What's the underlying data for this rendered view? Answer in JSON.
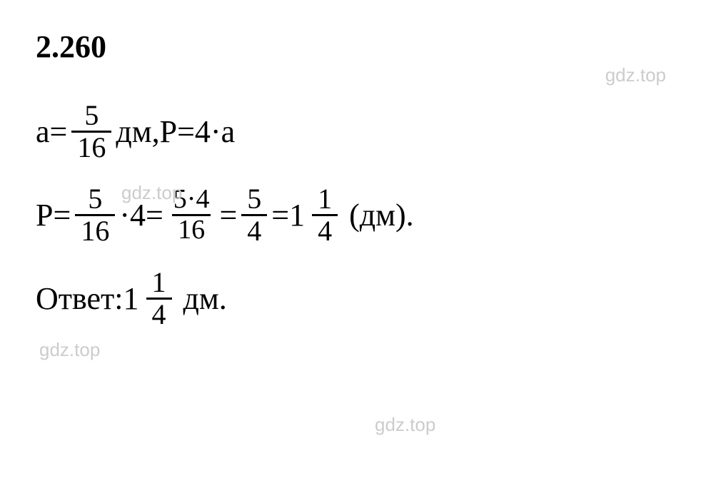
{
  "heading": "2.260",
  "watermark_text": "gdz.top",
  "colors": {
    "text": "#000000",
    "background": "#ffffff",
    "watermark": "#cccccc"
  },
  "typography": {
    "heading_fontsize": 44,
    "math_fontsize": 44,
    "frac_fontsize": 40,
    "watermark_fontsize": 26
  },
  "line1": {
    "var1": "a",
    "eq1": " = ",
    "frac1_num": "5",
    "frac1_den": "16",
    "unit1": " дм, ",
    "var2": "P",
    "eq2": " = ",
    "const1": "4",
    "mult": " · ",
    "var3": "a"
  },
  "line2": {
    "var1": "P",
    "eq1": " = ",
    "frac1_num": "5",
    "frac1_den": "16",
    "mult1": " · ",
    "const1": "4",
    "eq2": " = ",
    "frac2_num": "5·4",
    "frac2_den": "16",
    "eq3": " = ",
    "frac3_num": "5",
    "frac3_den": "4",
    "eq4": " = ",
    "mixed_whole": "1",
    "mixed_num": "1",
    "mixed_den": "4",
    "tail": " (дм)."
  },
  "line3": {
    "label": "Ответ: ",
    "mixed_whole": "1",
    "mixed_num": "1",
    "mixed_den": "4",
    "tail": " дм."
  }
}
